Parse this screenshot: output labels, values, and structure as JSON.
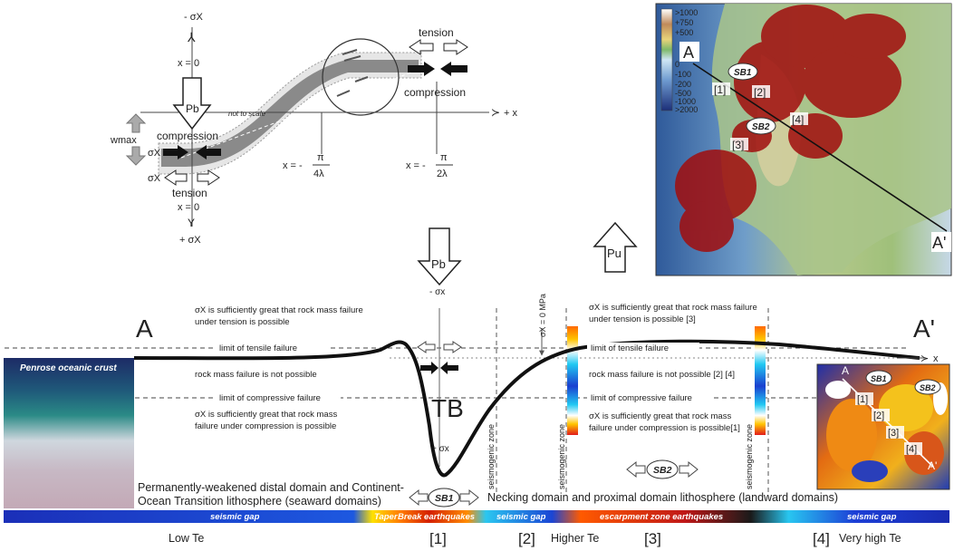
{
  "schematic": {
    "neg_sigma": "- σX",
    "x_zero_top": "x = 0",
    "pb": "Pb",
    "not_to_scale": "not to scale",
    "compression_left": "compression",
    "wmax": "wmax",
    "sigma_x": "σX",
    "sigma_x2": "σX",
    "tension_left": "tension",
    "x_zero_bottom": "x = 0",
    "pos_sigma": "+ σX",
    "tension_top": "tension",
    "compression_right": "compression",
    "x_axis": "+ x",
    "x_pi_4": "x = -",
    "pi": "π",
    "four_lambda": "4λ",
    "x_pi_2": "x = -",
    "pi2": "π",
    "two_lambda": "2λ"
  },
  "map": {
    "colorbar": [
      ">1000",
      "+750",
      "+500",
      "0",
      "-100",
      "-200",
      "-500",
      "-1000",
      ">2000"
    ],
    "label_A": "A",
    "label_A_prime": "A'",
    "sb1": "SB1",
    "sb2": "SB2",
    "n1": "[1]",
    "n2": "[2]",
    "n3": "[3]",
    "n4": "[4]"
  },
  "profile": {
    "label_A": "A",
    "label_A_prime": "A'",
    "pb": "Pb",
    "pu": "Pu",
    "neg_sigma": "- σx",
    "pos_sigma": "+ σx",
    "zero_mpa": "σX = 0 MPa",
    "tb": "TB",
    "x_axis": "x",
    "seis_zone_1": "seismogenic zone",
    "seis_zone_2": "seismogenic zone",
    "seis_zone_3": "seismogenic zone",
    "left_tension_1": "σX is sufficiently great that rock mass failure",
    "left_tension_2": "under tension is possible",
    "limit_tensile_left": "limit of tensile failure",
    "no_failure_left": "rock mass failure is not possible",
    "limit_comp_left": "limit of compressive failure",
    "left_comp_1": "σX is sufficiently great that rock mass",
    "left_comp_2": "failure under compression is possible",
    "right_tension_1": "σX is sufficiently great that rock mass failure",
    "right_tension_2": "under tension is possible [3]",
    "limit_tensile_right": "limit of tensile failure",
    "no_failure_right": "rock mass failure is not possible [2] [4]",
    "limit_comp_right": "limit of compressive failure",
    "right_comp_1": "σX is sufficiently great that rock mass",
    "right_comp_2": "failure under compression is possible[1]",
    "penrose": "Penrose oceanic crust",
    "seaward_1": "Permanently-weakened distal domain and Continent-",
    "seaward_2": "Ocean Transition lithosphere (seaward domains)",
    "sb1": "SB1",
    "sb2": "SB2",
    "landward": "Necking domain and proximal domain lithosphere (landward domains)"
  },
  "bar": {
    "seg1": "seismic gap",
    "seg2_a": "Taper",
    "seg2_b": "Break earthquakes",
    "seg3": "seismic gap",
    "seg4": "escarpment zone earthquakes",
    "seg5": "seismic gap"
  },
  "footer": {
    "low_te": "Low Te",
    "n1": "[1]",
    "n2": "[2]",
    "higher_te": "Higher Te",
    "n3": "[3]",
    "n4": "[4]",
    "very_high_te": "Very high Te"
  },
  "inset": {
    "label_A": "A",
    "label_A_prime": "A'",
    "sb1": "SB1",
    "sb2": "SB2",
    "n1": "[1]",
    "n2": "[2]",
    "n3": "[3]",
    "n4": "[4]"
  }
}
